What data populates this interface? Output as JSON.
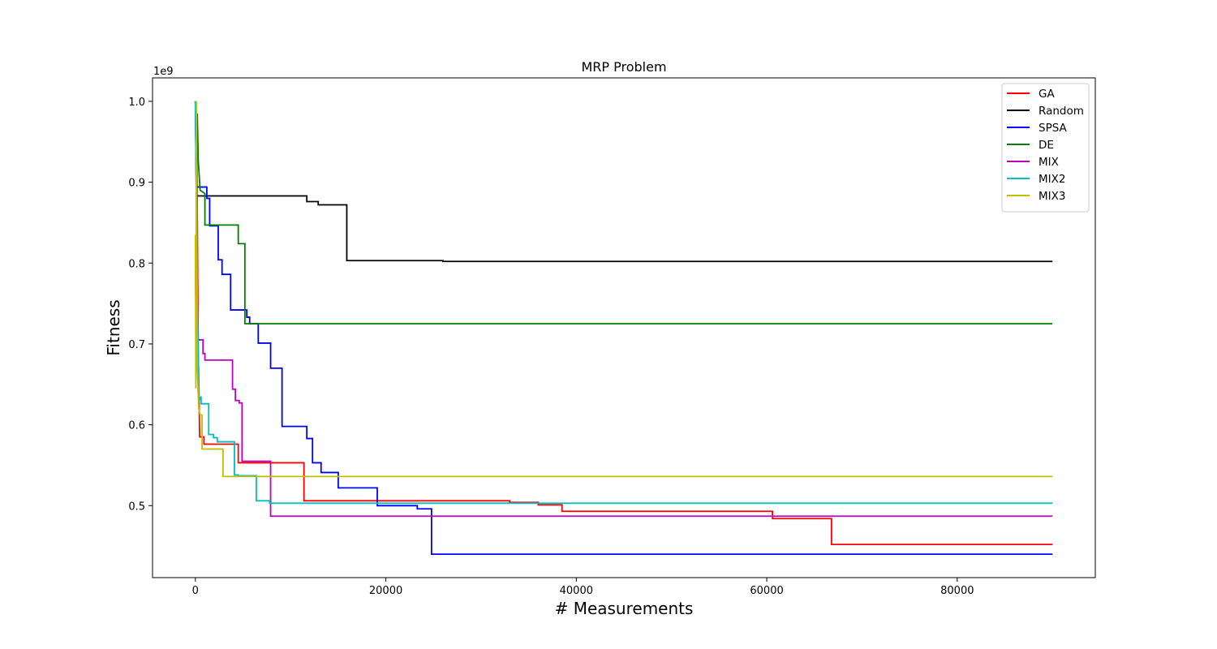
{
  "chart_data": {
    "type": "line",
    "title": "MRP Problem",
    "xlabel": "# Measurements",
    "ylabel": "Fitness",
    "y_offset_label": "1e9",
    "xlim": [
      -4500,
      94500
    ],
    "ylim": [
      0.411,
      1.029
    ],
    "x_ticks": [
      0,
      20000,
      40000,
      60000,
      80000
    ],
    "x_tick_labels": [
      "0",
      "20000",
      "40000",
      "60000",
      "80000"
    ],
    "y_ticks": [
      0.5,
      0.6,
      0.7,
      0.8,
      0.9,
      1.0
    ],
    "y_tick_labels": [
      "0.5",
      "0.6",
      "0.7",
      "0.8",
      "0.9",
      "1.0"
    ],
    "grid": false,
    "legend_position": "upper right",
    "series": [
      {
        "name": "GA",
        "color": "#ff0000",
        "points": [
          [
            0,
            1.0
          ],
          [
            150,
            0.95
          ],
          [
            300,
            0.69
          ],
          [
            450,
            0.585
          ],
          [
            900,
            0.585
          ],
          [
            900,
            0.576
          ],
          [
            4500,
            0.576
          ],
          [
            4500,
            0.553
          ],
          [
            11400,
            0.553
          ],
          [
            11400,
            0.506
          ],
          [
            33000,
            0.506
          ],
          [
            33000,
            0.504
          ],
          [
            36000,
            0.504
          ],
          [
            36000,
            0.501
          ],
          [
            38500,
            0.501
          ],
          [
            38500,
            0.493
          ],
          [
            60600,
            0.493
          ],
          [
            60600,
            0.484
          ],
          [
            66800,
            0.484
          ],
          [
            66800,
            0.452
          ],
          [
            90000,
            0.452
          ]
        ]
      },
      {
        "name": "Random",
        "color": "#000000",
        "points": [
          [
            0,
            1.0
          ],
          [
            100,
            0.883
          ],
          [
            11700,
            0.883
          ],
          [
            11700,
            0.876
          ],
          [
            12900,
            0.876
          ],
          [
            12900,
            0.872
          ],
          [
            15900,
            0.872
          ],
          [
            15900,
            0.803
          ],
          [
            26000,
            0.803
          ],
          [
            26000,
            0.802
          ],
          [
            90000,
            0.802
          ]
        ]
      },
      {
        "name": "SPSA",
        "color": "#0000ff",
        "points": [
          [
            0,
            1.0
          ],
          [
            100,
            0.894
          ],
          [
            1200,
            0.894
          ],
          [
            1200,
            0.88
          ],
          [
            1500,
            0.88
          ],
          [
            1500,
            0.846
          ],
          [
            2400,
            0.846
          ],
          [
            2400,
            0.804
          ],
          [
            2800,
            0.804
          ],
          [
            2800,
            0.786
          ],
          [
            3700,
            0.786
          ],
          [
            3700,
            0.742
          ],
          [
            5400,
            0.742
          ],
          [
            5400,
            0.733
          ],
          [
            5700,
            0.733
          ],
          [
            5700,
            0.725
          ],
          [
            6600,
            0.725
          ],
          [
            6600,
            0.701
          ],
          [
            7900,
            0.701
          ],
          [
            7900,
            0.67
          ],
          [
            9100,
            0.67
          ],
          [
            9100,
            0.598
          ],
          [
            11700,
            0.598
          ],
          [
            11700,
            0.583
          ],
          [
            12300,
            0.583
          ],
          [
            12300,
            0.553
          ],
          [
            13200,
            0.553
          ],
          [
            13200,
            0.541
          ],
          [
            15000,
            0.541
          ],
          [
            15000,
            0.522
          ],
          [
            19100,
            0.522
          ],
          [
            19100,
            0.5
          ],
          [
            23300,
            0.5
          ],
          [
            23300,
            0.496
          ],
          [
            24800,
            0.496
          ],
          [
            24800,
            0.44
          ],
          [
            90000,
            0.44
          ]
        ]
      },
      {
        "name": "DE",
        "color": "#008000",
        "points": [
          [
            0,
            1.0
          ],
          [
            100,
            0.97
          ],
          [
            200,
            0.985
          ],
          [
            300,
            0.927
          ],
          [
            500,
            0.89
          ],
          [
            1000,
            0.886
          ],
          [
            1000,
            0.847
          ],
          [
            4500,
            0.847
          ],
          [
            4500,
            0.824
          ],
          [
            5200,
            0.824
          ],
          [
            5200,
            0.725
          ],
          [
            90000,
            0.725
          ]
        ]
      },
      {
        "name": "MIX",
        "color": "#bf00bf",
        "points": [
          [
            0,
            0.79
          ],
          [
            100,
            0.7
          ],
          [
            200,
            0.75
          ],
          [
            300,
            0.705
          ],
          [
            800,
            0.705
          ],
          [
            800,
            0.688
          ],
          [
            1000,
            0.688
          ],
          [
            1000,
            0.68
          ],
          [
            3900,
            0.68
          ],
          [
            3900,
            0.644
          ],
          [
            4200,
            0.644
          ],
          [
            4200,
            0.63
          ],
          [
            4600,
            0.63
          ],
          [
            4600,
            0.627
          ],
          [
            4900,
            0.627
          ],
          [
            4900,
            0.555
          ],
          [
            7900,
            0.555
          ],
          [
            7900,
            0.487
          ],
          [
            90000,
            0.487
          ]
        ]
      },
      {
        "name": "MIX2",
        "color": "#00bfbf",
        "points": [
          [
            0,
            1.0
          ],
          [
            100,
            0.89
          ],
          [
            200,
            0.75
          ],
          [
            300,
            0.69
          ],
          [
            400,
            0.63
          ],
          [
            600,
            0.635
          ],
          [
            600,
            0.626
          ],
          [
            1400,
            0.626
          ],
          [
            1400,
            0.588
          ],
          [
            1900,
            0.588
          ],
          [
            1900,
            0.584
          ],
          [
            2300,
            0.584
          ],
          [
            2300,
            0.579
          ],
          [
            4100,
            0.579
          ],
          [
            4100,
            0.538
          ],
          [
            4500,
            0.538
          ],
          [
            4500,
            0.537
          ],
          [
            6400,
            0.537
          ],
          [
            6400,
            0.506
          ],
          [
            7800,
            0.506
          ],
          [
            7800,
            0.503
          ],
          [
            90000,
            0.503
          ]
        ]
      },
      {
        "name": "MIX3",
        "color": "#bfbf00",
        "points": [
          [
            0,
            0.835
          ],
          [
            50,
            0.645
          ],
          [
            100,
            1.0
          ],
          [
            200,
            0.67
          ],
          [
            350,
            0.62
          ],
          [
            500,
            0.612
          ],
          [
            700,
            0.612
          ],
          [
            700,
            0.57
          ],
          [
            2900,
            0.57
          ],
          [
            2900,
            0.536
          ],
          [
            90000,
            0.536
          ]
        ]
      }
    ]
  }
}
